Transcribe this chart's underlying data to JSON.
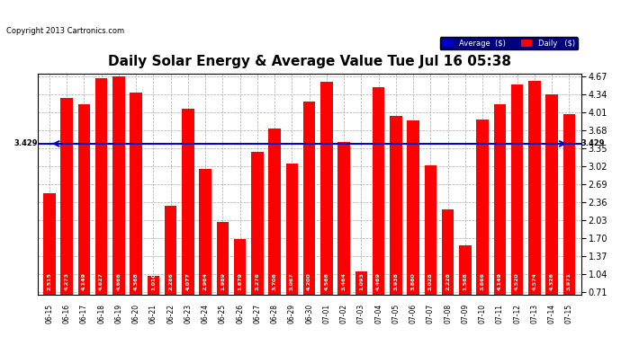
{
  "title": "Daily Solar Energy & Average Value Tue Jul 16 05:38",
  "copyright": "Copyright 2013 Cartronics.com",
  "average_value": 3.429,
  "average_label": "3.429",
  "bar_color": "#ff0000",
  "average_line_color": "#0000cc",
  "background_color": "#ffffff",
  "grid_color": "#aaaaaa",
  "categories": [
    "06-15",
    "06-16",
    "06-17",
    "06-18",
    "06-19",
    "06-20",
    "06-21",
    "06-22",
    "06-23",
    "06-24",
    "06-25",
    "06-26",
    "06-27",
    "06-28",
    "06-29",
    "06-30",
    "07-01",
    "07-02",
    "07-03",
    "07-04",
    "07-05",
    "07-06",
    "07-07",
    "07-08",
    "07-09",
    "07-10",
    "07-11",
    "07-12",
    "07-13",
    "07-14",
    "07-15"
  ],
  "values": [
    2.515,
    4.273,
    4.149,
    4.627,
    4.666,
    4.368,
    1.01,
    2.286,
    4.077,
    2.964,
    1.989,
    1.679,
    3.276,
    3.706,
    3.067,
    4.2,
    4.566,
    3.464,
    1.093,
    4.469,
    3.938,
    3.86,
    3.028,
    2.228,
    1.568,
    3.866,
    4.149,
    4.52,
    4.574,
    4.326,
    3.971
  ],
  "ylim_min": 0.71,
  "ylim_max": 4.67,
  "yticks": [
    0.71,
    1.04,
    1.37,
    1.7,
    2.03,
    2.36,
    2.69,
    3.02,
    3.35,
    3.68,
    4.01,
    4.34,
    4.67
  ],
  "legend_avg_color": "#0000cc",
  "legend_daily_color": "#ff0000",
  "legend_avg_text": "Average  ($)",
  "legend_daily_text": "Daily   ($)"
}
